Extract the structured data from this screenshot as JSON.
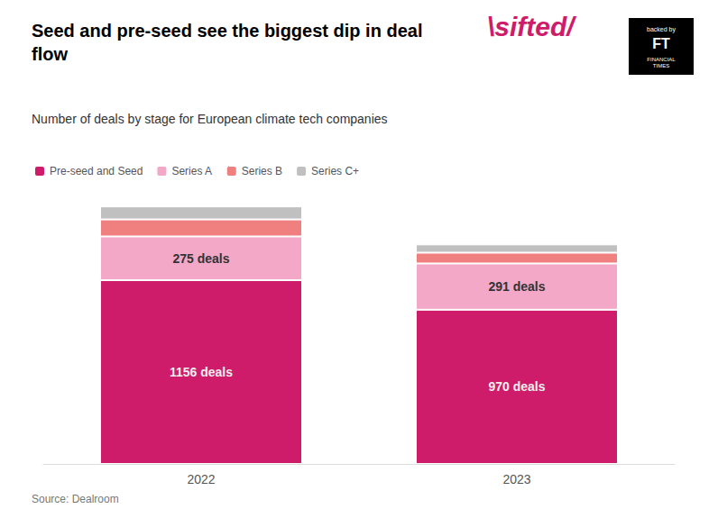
{
  "chart_data": {
    "type": "bar",
    "title": "Seed and pre-seed see the biggest dip in deal\nflow",
    "subtitle": "Number of deals by stage for European climate tech companies",
    "source": "Source: Dealroom",
    "annotations": [
      "\\sifted/",
      "backed by",
      "FT",
      "FINANCIAL\nTIMES"
    ],
    "categories": [
      "2022",
      "2023"
    ],
    "stacked": true,
    "series": [
      {
        "name": "Pre-seed and Seed",
        "color": "#CE1B6A",
        "values": [
          1156,
          970
        ],
        "value_labels": [
          "1156 deals",
          "970 deals"
        ]
      },
      {
        "name": "Series A",
        "color": "#F4A8C7",
        "values": [
          275,
          291
        ],
        "value_labels": [
          "275 deals",
          "291 deals"
        ]
      },
      {
        "name": "Series B",
        "color": "#F08080",
        "values": [
          107,
          68
        ]
      },
      {
        "name": "Series C+",
        "color": "#C0C0C0",
        "values": [
          82,
          52
        ]
      }
    ],
    "ylim": [
      0,
      1700
    ],
    "tick_labels": "x",
    "grid": false,
    "legend": "upper left"
  }
}
